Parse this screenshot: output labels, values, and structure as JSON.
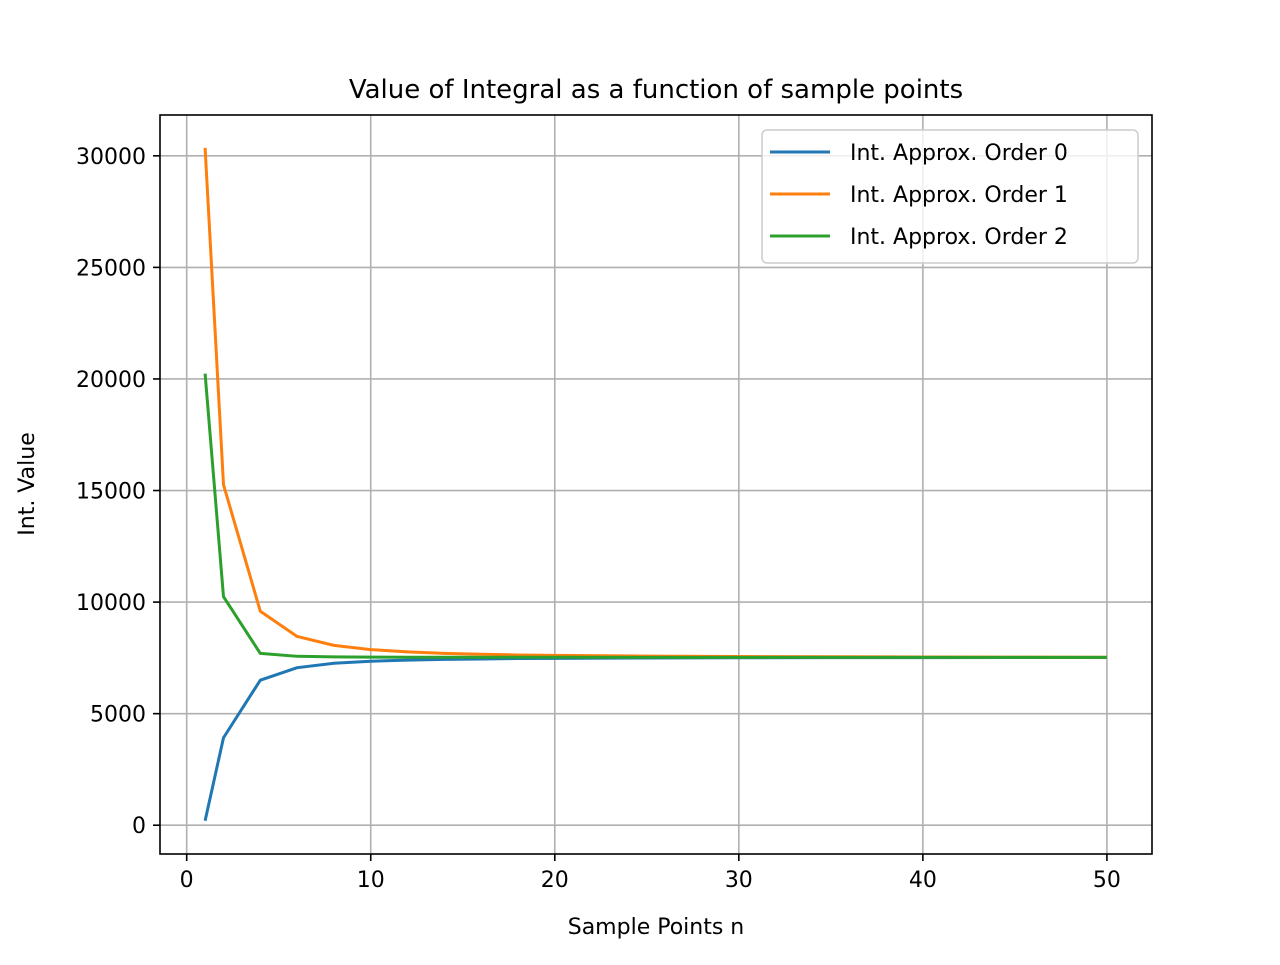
{
  "chart_data": {
    "type": "line",
    "title": "Value of Integral as a function of sample points",
    "xlabel": "Sample Points n",
    "ylabel": "Int. Value",
    "xlim": [
      -1.45,
      52.45
    ],
    "ylim": [
      -1290,
      31830
    ],
    "xticks": [
      0,
      10,
      20,
      30,
      40,
      50
    ],
    "yticks": [
      0,
      5000,
      10000,
      15000,
      20000,
      25000,
      30000
    ],
    "xtick_labels": [
      "0",
      "10",
      "20",
      "30",
      "40",
      "50"
    ],
    "ytick_labels": [
      "0",
      "5000",
      "10000",
      "15000",
      "20000",
      "25000",
      "30000"
    ],
    "grid": true,
    "legend_position": "top-right",
    "x": [
      1,
      2,
      4,
      6,
      8,
      10,
      12,
      14,
      16,
      18,
      20,
      25,
      30,
      35,
      40,
      45,
      50
    ],
    "series": [
      {
        "name": "Int. Approx. Order 0",
        "color": "#1f77b4",
        "values": [
          200,
          3920,
          6500,
          7060,
          7260,
          7350,
          7400,
          7430,
          7450,
          7470,
          7480,
          7495,
          7505,
          7510,
          7513,
          7515,
          7517
        ]
      },
      {
        "name": "Int. Approx. Order 1",
        "color": "#ff7f0e",
        "values": [
          30360,
          15260,
          9590,
          8460,
          8060,
          7870,
          7770,
          7700,
          7660,
          7630,
          7610,
          7580,
          7560,
          7550,
          7540,
          7535,
          7530
        ]
      },
      {
        "name": "Int. Approx. Order 2",
        "color": "#2ca02c",
        "values": [
          20240,
          10240,
          7700,
          7570,
          7545,
          7535,
          7530,
          7528,
          7527,
          7526,
          7525,
          7524,
          7523,
          7523,
          7522,
          7522,
          7522
        ]
      }
    ]
  }
}
